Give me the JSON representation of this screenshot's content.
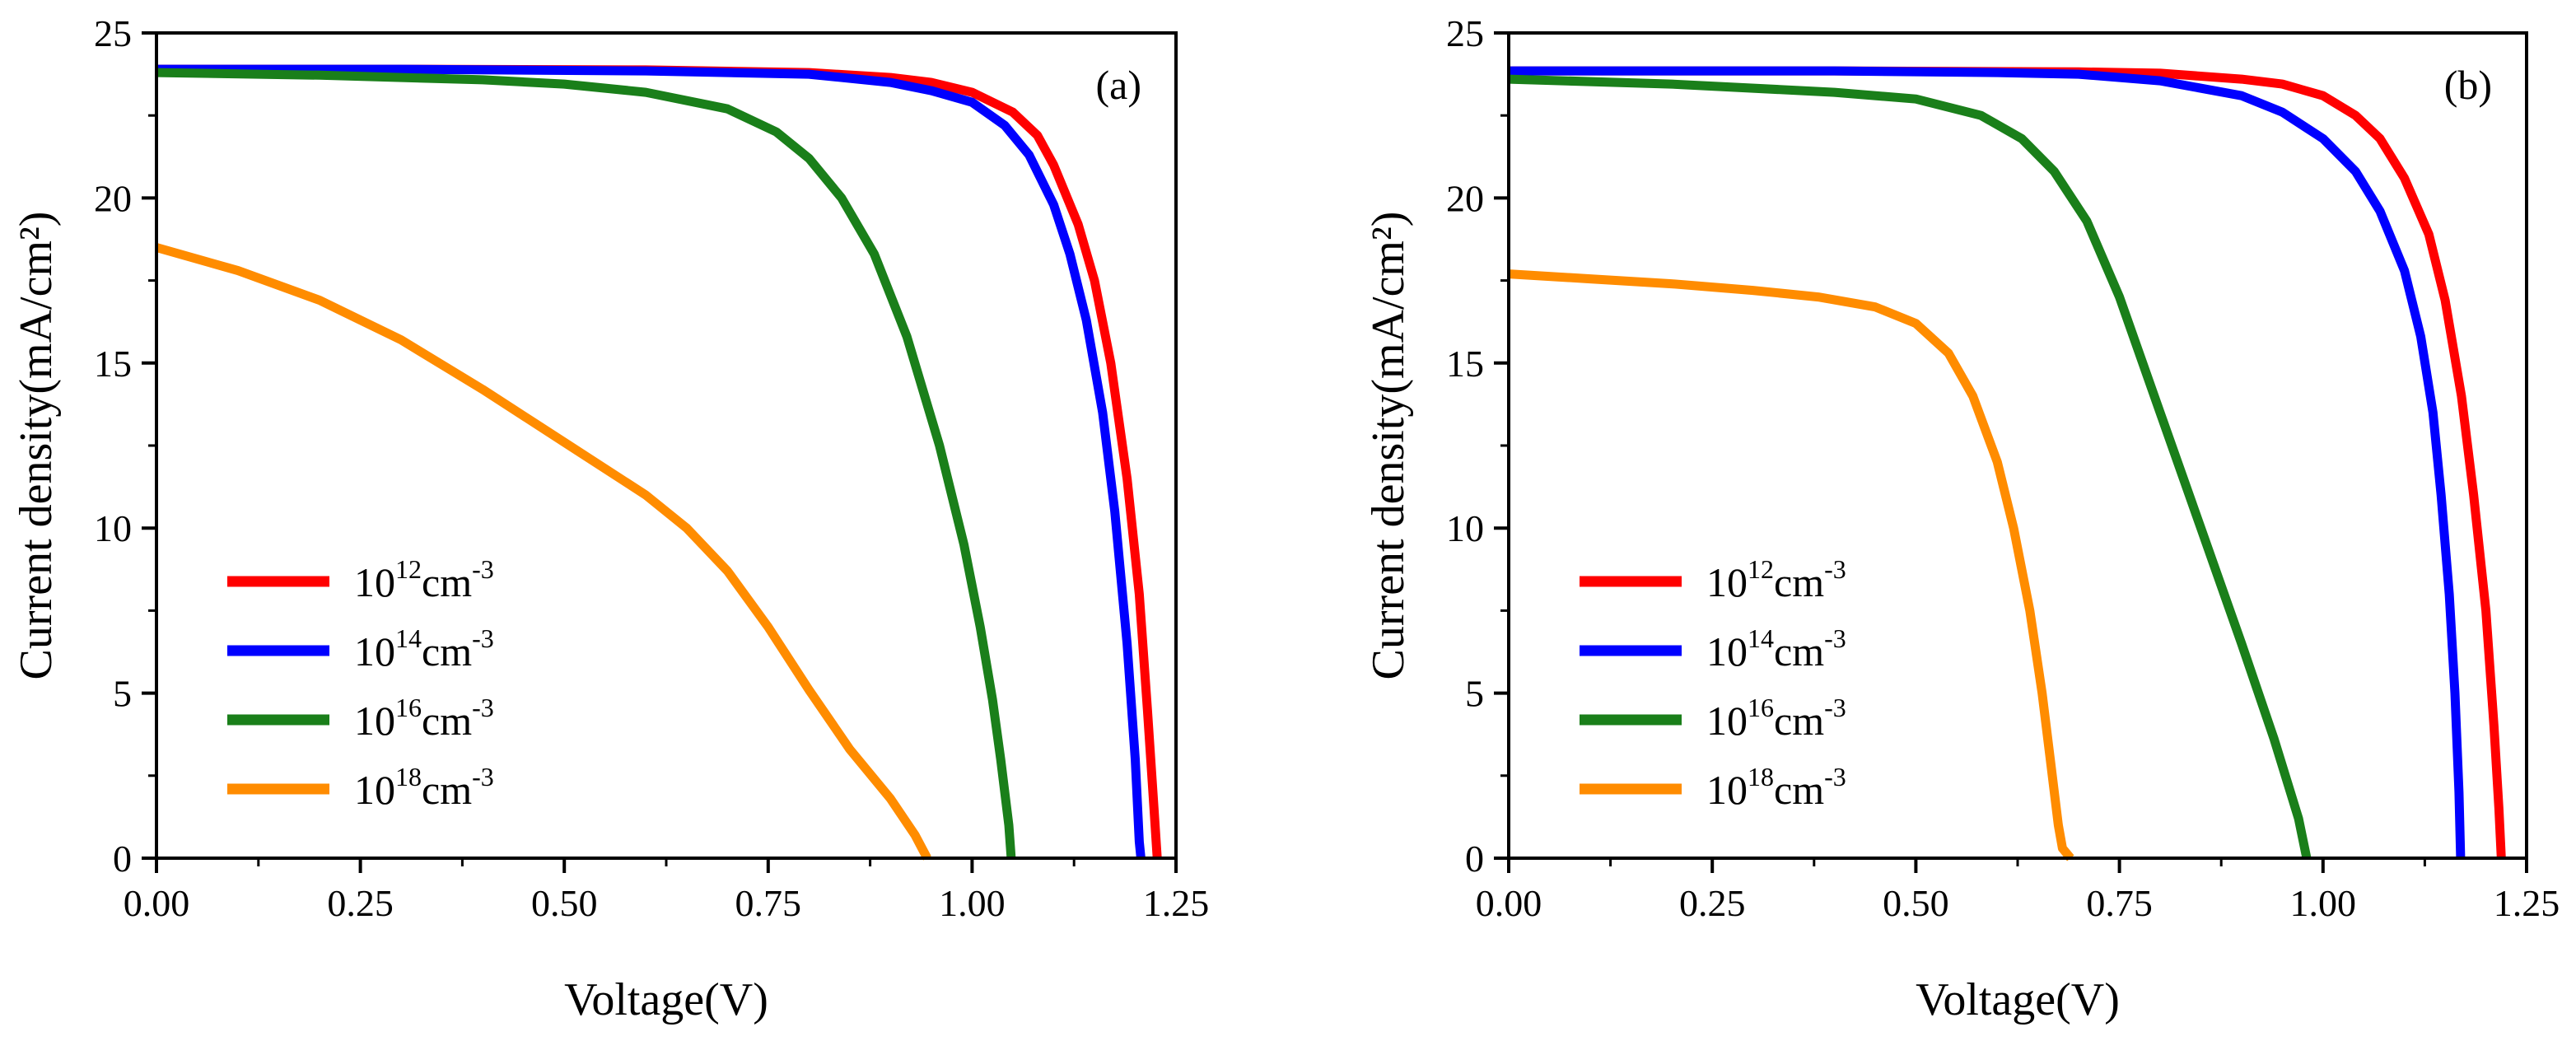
{
  "figure": {
    "chart_data": [
      {
        "type": "line",
        "panel_label": "(a)",
        "xlabel": "Voltage(V)",
        "ylabel": "Current density(mA/cm²)",
        "xlim": [
          0,
          1.25
        ],
        "ylim": [
          0,
          25
        ],
        "xticks": [
          "0.00",
          "0.25",
          "0.50",
          "0.75",
          "1.00",
          "1.25"
        ],
        "yticks": [
          "0",
          "5",
          "10",
          "15",
          "20",
          "25"
        ],
        "grid": false,
        "legend_position": "lower-left",
        "series": [
          {
            "base": "10",
            "exponent": "12",
            "unit": "cm",
            "unit_exponent": "-3",
            "color": "#ff0000",
            "points": [
              [
                0,
                23.9
              ],
              [
                0.3,
                23.9
              ],
              [
                0.6,
                23.88
              ],
              [
                0.8,
                23.8
              ],
              [
                0.9,
                23.65
              ],
              [
                0.95,
                23.5
              ],
              [
                1.0,
                23.2
              ],
              [
                1.05,
                22.6
              ],
              [
                1.08,
                21.9
              ],
              [
                1.1,
                21.0
              ],
              [
                1.13,
                19.2
              ],
              [
                1.15,
                17.5
              ],
              [
                1.17,
                15.0
              ],
              [
                1.19,
                11.5
              ],
              [
                1.205,
                8.0
              ],
              [
                1.215,
                4.5
              ],
              [
                1.223,
                1.5
              ],
              [
                1.227,
                0
              ]
            ]
          },
          {
            "base": "10",
            "exponent": "14",
            "unit": "cm",
            "unit_exponent": "-3",
            "color": "#0000ff",
            "points": [
              [
                0,
                23.9
              ],
              [
                0.3,
                23.9
              ],
              [
                0.6,
                23.85
              ],
              [
                0.8,
                23.75
              ],
              [
                0.9,
                23.5
              ],
              [
                0.95,
                23.25
              ],
              [
                1.0,
                22.9
              ],
              [
                1.04,
                22.2
              ],
              [
                1.07,
                21.3
              ],
              [
                1.1,
                19.8
              ],
              [
                1.12,
                18.3
              ],
              [
                1.14,
                16.3
              ],
              [
                1.16,
                13.5
              ],
              [
                1.175,
                10.5
              ],
              [
                1.19,
                6.5
              ],
              [
                1.2,
                3.0
              ],
              [
                1.205,
                0.5
              ],
              [
                1.207,
                0
              ]
            ]
          },
          {
            "base": "10",
            "exponent": "16",
            "unit": "cm",
            "unit_exponent": "-3",
            "color": "#1a7f1a",
            "points": [
              [
                0,
                23.8
              ],
              [
                0.2,
                23.72
              ],
              [
                0.4,
                23.58
              ],
              [
                0.5,
                23.45
              ],
              [
                0.6,
                23.2
              ],
              [
                0.7,
                22.7
              ],
              [
                0.76,
                22.0
              ],
              [
                0.8,
                21.2
              ],
              [
                0.84,
                20.0
              ],
              [
                0.88,
                18.3
              ],
              [
                0.92,
                15.8
              ],
              [
                0.96,
                12.5
              ],
              [
                0.99,
                9.5
              ],
              [
                1.01,
                7.0
              ],
              [
                1.025,
                4.8
              ],
              [
                1.035,
                3.0
              ],
              [
                1.045,
                1.0
              ],
              [
                1.048,
                0
              ]
            ]
          },
          {
            "base": "10",
            "exponent": "18",
            "unit": "cm",
            "unit_exponent": "-3",
            "color": "#ff8c00",
            "points": [
              [
                0,
                18.5
              ],
              [
                0.1,
                17.8
              ],
              [
                0.2,
                16.9
              ],
              [
                0.3,
                15.7
              ],
              [
                0.4,
                14.2
              ],
              [
                0.5,
                12.6
              ],
              [
                0.6,
                11.0
              ],
              [
                0.65,
                10.0
              ],
              [
                0.7,
                8.7
              ],
              [
                0.75,
                7.0
              ],
              [
                0.8,
                5.1
              ],
              [
                0.85,
                3.3
              ],
              [
                0.9,
                1.8
              ],
              [
                0.93,
                0.7
              ],
              [
                0.945,
                0
              ]
            ]
          }
        ]
      },
      {
        "type": "line",
        "panel_label": "(b)",
        "xlabel": "Voltage(V)",
        "ylabel": "Current density(mA/cm²)",
        "xlim": [
          0,
          1.25
        ],
        "ylim": [
          0,
          25
        ],
        "xticks": [
          "0.00",
          "0.25",
          "0.50",
          "0.75",
          "1.00",
          "1.25"
        ],
        "yticks": [
          "0",
          "5",
          "10",
          "15",
          "20",
          "25"
        ],
        "grid": false,
        "legend_position": "lower-left",
        "series": [
          {
            "base": "10",
            "exponent": "12",
            "unit": "cm",
            "unit_exponent": "-3",
            "color": "#ff0000",
            "points": [
              [
                0,
                23.85
              ],
              [
                0.4,
                23.85
              ],
              [
                0.7,
                23.82
              ],
              [
                0.8,
                23.78
              ],
              [
                0.9,
                23.6
              ],
              [
                0.95,
                23.45
              ],
              [
                1.0,
                23.1
              ],
              [
                1.04,
                22.5
              ],
              [
                1.07,
                21.8
              ],
              [
                1.1,
                20.6
              ],
              [
                1.13,
                18.9
              ],
              [
                1.15,
                16.9
              ],
              [
                1.17,
                14.0
              ],
              [
                1.185,
                11.0
              ],
              [
                1.2,
                7.5
              ],
              [
                1.21,
                4.0
              ],
              [
                1.216,
                1.5
              ],
              [
                1.219,
                0
              ]
            ]
          },
          {
            "base": "10",
            "exponent": "14",
            "unit": "cm",
            "unit_exponent": "-3",
            "color": "#0000ff",
            "points": [
              [
                0,
                23.85
              ],
              [
                0.4,
                23.85
              ],
              [
                0.6,
                23.8
              ],
              [
                0.7,
                23.75
              ],
              [
                0.8,
                23.55
              ],
              [
                0.9,
                23.1
              ],
              [
                0.95,
                22.6
              ],
              [
                1.0,
                21.8
              ],
              [
                1.04,
                20.8
              ],
              [
                1.07,
                19.6
              ],
              [
                1.1,
                17.8
              ],
              [
                1.12,
                15.8
              ],
              [
                1.135,
                13.5
              ],
              [
                1.145,
                11.0
              ],
              [
                1.155,
                8.0
              ],
              [
                1.162,
                5.0
              ],
              [
                1.167,
                2.0
              ],
              [
                1.169,
                0
              ]
            ]
          },
          {
            "base": "10",
            "exponent": "16",
            "unit": "cm",
            "unit_exponent": "-3",
            "color": "#1a7f1a",
            "points": [
              [
                0,
                23.6
              ],
              [
                0.2,
                23.45
              ],
              [
                0.4,
                23.2
              ],
              [
                0.5,
                23.0
              ],
              [
                0.58,
                22.5
              ],
              [
                0.63,
                21.8
              ],
              [
                0.67,
                20.8
              ],
              [
                0.71,
                19.3
              ],
              [
                0.75,
                17.0
              ],
              [
                0.8,
                13.5
              ],
              [
                0.85,
                10.0
              ],
              [
                0.9,
                6.5
              ],
              [
                0.94,
                3.6
              ],
              [
                0.97,
                1.2
              ],
              [
                0.98,
                0
              ]
            ]
          },
          {
            "base": "10",
            "exponent": "18",
            "unit": "cm",
            "unit_exponent": "-3",
            "color": "#ff8c00",
            "points": [
              [
                0,
                17.7
              ],
              [
                0.1,
                17.55
              ],
              [
                0.2,
                17.4
              ],
              [
                0.3,
                17.2
              ],
              [
                0.38,
                17.0
              ],
              [
                0.45,
                16.7
              ],
              [
                0.5,
                16.2
              ],
              [
                0.54,
                15.3
              ],
              [
                0.57,
                14.0
              ],
              [
                0.6,
                12.0
              ],
              [
                0.62,
                10.0
              ],
              [
                0.64,
                7.5
              ],
              [
                0.655,
                5.0
              ],
              [
                0.665,
                3.0
              ],
              [
                0.675,
                1.0
              ],
              [
                0.68,
                0.3
              ],
              [
                0.69,
                0
              ]
            ]
          }
        ]
      }
    ]
  }
}
